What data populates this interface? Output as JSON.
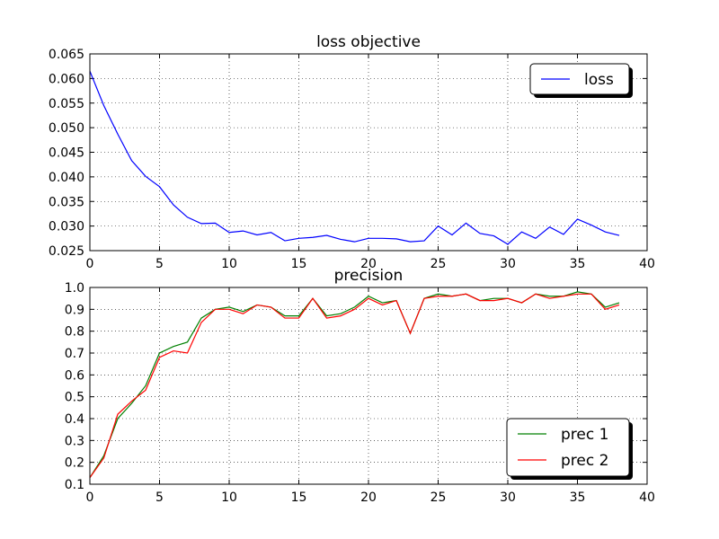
{
  "chart_data": [
    {
      "type": "line",
      "title": "loss objective",
      "xlabel": "",
      "ylabel": "",
      "xlim": [
        0,
        40
      ],
      "ylim": [
        0.025,
        0.065
      ],
      "xticks": [
        "0",
        "5",
        "10",
        "15",
        "20",
        "25",
        "30",
        "35",
        "40"
      ],
      "yticks": [
        "0.025",
        "0.030",
        "0.035",
        "0.040",
        "0.045",
        "0.050",
        "0.055",
        "0.060",
        "0.065"
      ],
      "grid": true,
      "legend_position": "top-right",
      "x": [
        0,
        1,
        2,
        3,
        4,
        5,
        6,
        7,
        8,
        9,
        10,
        11,
        12,
        13,
        14,
        15,
        16,
        17,
        18,
        19,
        20,
        21,
        22,
        23,
        24,
        25,
        26,
        27,
        28,
        29,
        30,
        31,
        32,
        33,
        34,
        35,
        36,
        37,
        38
      ],
      "series": [
        {
          "name": "loss",
          "color": "#0000ff",
          "values": [
            0.0615,
            0.0545,
            0.0487,
            0.0433,
            0.0401,
            0.038,
            0.0343,
            0.0318,
            0.0305,
            0.0306,
            0.0287,
            0.029,
            0.0282,
            0.0287,
            0.027,
            0.0275,
            0.0277,
            0.0281,
            0.0273,
            0.0268,
            0.0275,
            0.0275,
            0.0274,
            0.0268,
            0.027,
            0.03,
            0.0282,
            0.0306,
            0.0285,
            0.028,
            0.0263,
            0.0288,
            0.0275,
            0.0298,
            0.0283,
            0.0314,
            0.0302,
            0.0288,
            0.0281
          ]
        }
      ]
    },
    {
      "type": "line",
      "title": "precision",
      "xlabel": "",
      "ylabel": "",
      "xlim": [
        0,
        40
      ],
      "ylim": [
        0.1,
        1.0
      ],
      "xticks": [
        "0",
        "5",
        "10",
        "15",
        "20",
        "25",
        "30",
        "35",
        "40"
      ],
      "yticks": [
        "0.1",
        "0.2",
        "0.3",
        "0.4",
        "0.5",
        "0.6",
        "0.7",
        "0.8",
        "0.9",
        "1.0"
      ],
      "grid": true,
      "legend_position": "lower-right",
      "x": [
        0,
        1,
        2,
        3,
        4,
        5,
        6,
        7,
        8,
        9,
        10,
        11,
        12,
        13,
        14,
        15,
        16,
        17,
        18,
        19,
        20,
        21,
        22,
        23,
        24,
        25,
        26,
        27,
        28,
        29,
        30,
        31,
        32,
        33,
        34,
        35,
        36,
        37,
        38
      ],
      "series": [
        {
          "name": "prec 1",
          "color": "#008000",
          "values": [
            0.13,
            0.23,
            0.4,
            0.47,
            0.55,
            0.7,
            0.73,
            0.75,
            0.86,
            0.9,
            0.91,
            0.89,
            0.92,
            0.91,
            0.87,
            0.87,
            0.95,
            0.87,
            0.88,
            0.91,
            0.96,
            0.93,
            0.94,
            0.79,
            0.95,
            0.97,
            0.96,
            0.97,
            0.94,
            0.95,
            0.95,
            0.93,
            0.97,
            0.96,
            0.96,
            0.98,
            0.97,
            0.91,
            0.93
          ]
        },
        {
          "name": "prec 2",
          "color": "#ff0000",
          "values": [
            0.13,
            0.22,
            0.42,
            0.48,
            0.53,
            0.68,
            0.71,
            0.7,
            0.84,
            0.9,
            0.9,
            0.88,
            0.92,
            0.91,
            0.86,
            0.86,
            0.95,
            0.86,
            0.87,
            0.9,
            0.95,
            0.92,
            0.94,
            0.79,
            0.95,
            0.96,
            0.96,
            0.97,
            0.94,
            0.94,
            0.95,
            0.93,
            0.97,
            0.95,
            0.96,
            0.97,
            0.97,
            0.9,
            0.92
          ]
        }
      ]
    }
  ]
}
